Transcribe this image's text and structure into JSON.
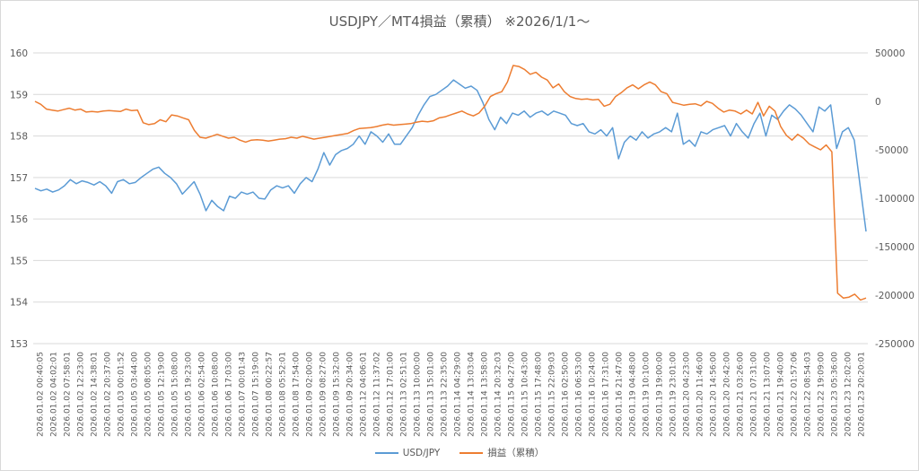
{
  "chart_data": {
    "type": "line",
    "title": "USDJPY／MT4損益（累積） ※2026/1/1〜",
    "left_axis": {
      "ticks": [
        153,
        154,
        155,
        156,
        157,
        158,
        159,
        160
      ],
      "ylim": [
        153,
        160
      ]
    },
    "right_axis": {
      "ticks": [
        50000,
        0,
        -50000,
        -100000,
        -150000,
        -200000,
        -250000
      ],
      "ylim": [
        -250000,
        50000
      ]
    },
    "grid": true,
    "legend_position": "bottom",
    "x_tick_labels": [
      "2026.01.02 00:40:05",
      "2026.01.02 04:02:01",
      "2026.01.02 07:58:01",
      "2026.01.02 12:23:00",
      "2026.01.02 14:38:01",
      "2026.01.02 20:37:00",
      "2026.01.03 00:01:52",
      "2026.01.05 03:44:00",
      "2026.01.05 08:05:00",
      "2026.01.05 12:19:00",
      "2026.01.05 15:08:00",
      "2026.01.05 19:23:00",
      "2026.01.06 02:54:00",
      "2026.01.06 10:08:00",
      "2026.01.06 17:03:00",
      "2026.01.07 00:01:43",
      "2026.01.07 15:19:00",
      "2026.01.08 00:22:57",
      "2026.01.08 05:52:01",
      "2026.01.08 17:54:00",
      "2026.01.09 02:00:00",
      "2026.01.09 08:27:00",
      "2026.01.09 15:32:00",
      "2026.01.09 20:34:00",
      "2026.01.12 04:06:01",
      "2026.01.12 11:37:02",
      "2026.01.12 17:01:00",
      "2026.01.13 02:51:01",
      "2026.01.13 10:00:00",
      "2026.01.13 15:01:00",
      "2026.01.13 22:35:00",
      "2026.01.14 04:29:00",
      "2026.01.14 13:03:04",
      "2026.01.14 13:58:00",
      "2026.01.14 20:32:03",
      "2026.01.15 04:27:00",
      "2026.01.15 10:43:00",
      "2026.01.15 17:48:00",
      "2026.01.15 22:09:03",
      "2026.01.16 02:50:00",
      "2026.01.16 06:53:00",
      "2026.01.16 10:24:00",
      "2026.01.16 17:31:00",
      "2026.01.16 21:47:00",
      "2026.01.19 04:48:00",
      "2026.01.19 10:10:00",
      "2026.01.19 19:00:00",
      "2026.01.19 23:01:00",
      "2026.01.20 04:23:00",
      "2026.01.20 11:46:00",
      "2026.01.20 14:56:00",
      "2026.01.20 20:42:00",
      "2026.01.21 03:26:00",
      "2026.01.21 07:31:00",
      "2026.01.21 13:07:00",
      "2026.01.21 19:40:00",
      "2026.01.22 01:57:06",
      "2026.01.22 08:54:03",
      "2026.01.22 19:09:00",
      "2026.01.23 05:36:00",
      "2026.01.23 12:02:00",
      "2026.01.23 20:20:01"
    ],
    "series": [
      {
        "name": "USD/JPY",
        "axis": "left",
        "color": "#5b9bd5",
        "values": [
          156.74,
          156.68,
          156.72,
          156.65,
          156.7,
          156.8,
          156.95,
          156.85,
          156.92,
          156.88,
          156.82,
          156.9,
          156.8,
          156.62,
          156.9,
          156.95,
          156.85,
          156.88,
          157.0,
          157.1,
          157.2,
          157.25,
          157.1,
          157.0,
          156.85,
          156.6,
          156.75,
          156.9,
          156.6,
          156.2,
          156.45,
          156.3,
          156.2,
          156.55,
          156.5,
          156.65,
          156.6,
          156.65,
          156.5,
          156.48,
          156.7,
          156.8,
          156.75,
          156.8,
          156.62,
          156.85,
          157.0,
          156.9,
          157.2,
          157.6,
          157.3,
          157.55,
          157.65,
          157.7,
          157.8,
          158.0,
          157.8,
          158.1,
          158.0,
          157.85,
          158.05,
          157.8,
          157.8,
          158.0,
          158.2,
          158.5,
          158.75,
          158.95,
          159.0,
          159.1,
          159.2,
          159.35,
          159.25,
          159.15,
          159.2,
          159.1,
          158.8,
          158.4,
          158.15,
          158.45,
          158.3,
          158.55,
          158.5,
          158.6,
          158.45,
          158.55,
          158.6,
          158.5,
          158.6,
          158.55,
          158.5,
          158.3,
          158.25,
          158.3,
          158.1,
          158.05,
          158.15,
          158.0,
          158.2,
          157.45,
          157.85,
          158.0,
          157.9,
          158.1,
          157.95,
          158.05,
          158.1,
          158.2,
          158.1,
          158.55,
          157.8,
          157.9,
          157.75,
          158.1,
          158.05,
          158.15,
          158.2,
          158.25,
          158.0,
          158.3,
          158.1,
          157.95,
          158.3,
          158.55,
          158.0,
          158.5,
          158.4,
          158.6,
          158.75,
          158.65,
          158.5,
          158.3,
          158.1,
          158.7,
          158.6,
          158.75,
          157.7,
          158.1,
          158.2,
          157.9,
          156.8,
          155.7
        ]
      },
      {
        "name": "損益（累積）",
        "axis": "right",
        "color": "#ed7d31",
        "values": [
          0,
          -3000,
          -8000,
          -9000,
          -10000,
          -8500,
          -7000,
          -9000,
          -8000,
          -11000,
          -10500,
          -11000,
          -10000,
          -9500,
          -10000,
          -10500,
          -8000,
          -9500,
          -9000,
          -22000,
          -24000,
          -23000,
          -19000,
          -21000,
          -14000,
          -15000,
          -17000,
          -19000,
          -30000,
          -37000,
          -38000,
          -36000,
          -34000,
          -36000,
          -38000,
          -37000,
          -40000,
          -42000,
          -40000,
          -39500,
          -40000,
          -41000,
          -40000,
          -39000,
          -38500,
          -37000,
          -38000,
          -36000,
          -37500,
          -39000,
          -38000,
          -37000,
          -36000,
          -35000,
          -34000,
          -33000,
          -30000,
          -28000,
          -27500,
          -27000,
          -26000,
          -24500,
          -23500,
          -24500,
          -24000,
          -23500,
          -23000,
          -21500,
          -20500,
          -21000,
          -20000,
          -17000,
          -16000,
          -14000,
          -12000,
          -10000,
          -13000,
          -15000,
          -12000,
          -5000,
          5000,
          8000,
          10000,
          20000,
          37000,
          36000,
          33000,
          28000,
          30000,
          25000,
          22000,
          14000,
          18000,
          10000,
          5000,
          3000,
          2000,
          2500,
          1500,
          2000,
          -5000,
          -3000,
          5000,
          9000,
          14000,
          17000,
          13000,
          17000,
          20000,
          17000,
          10000,
          8000,
          -1000,
          -2500,
          -4000,
          -3000,
          -2500,
          -4500,
          0,
          -2000,
          -7000,
          -11000,
          -9000,
          -10000,
          -13000,
          -9000,
          -13000,
          -1000,
          -15000,
          -5000,
          -10000,
          -26000,
          -35000,
          -40000,
          -34000,
          -38000,
          -44000,
          -47000,
          -50000,
          -45000,
          -52000,
          -198000,
          -203000,
          -202000,
          -199000,
          -205000,
          -203000
        ]
      }
    ]
  }
}
